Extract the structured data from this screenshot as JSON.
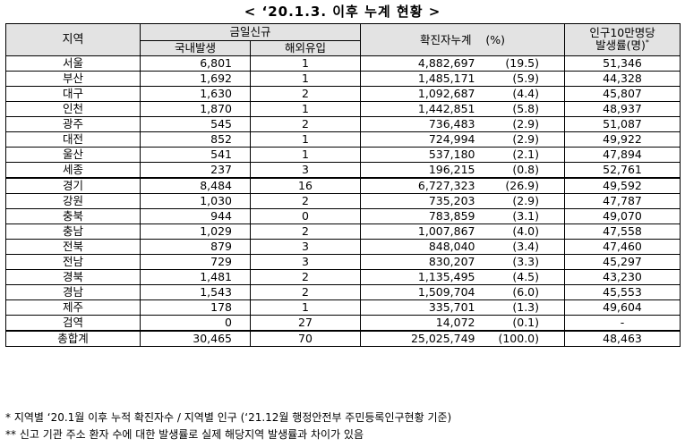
{
  "title": "< ‘20.1.3. 이후 누계 현황 >",
  "headers": {
    "region": "지역",
    "daily_new": "금일신규",
    "domestic": "국내발생",
    "overseas": "해외유입",
    "cumulative": "확진자누계",
    "percent": "(%)",
    "rate_line1": "인구10만명당",
    "rate_line2": "발생률(명)",
    "rate_marker": "*"
  },
  "rows": [
    {
      "region": "서울",
      "domestic": "6,801",
      "overseas": "1",
      "cumulative": "4,882,697",
      "pct": "(19.5)",
      "rate": "51,346"
    },
    {
      "region": "부산",
      "domestic": "1,692",
      "overseas": "1",
      "cumulative": "1,485,171",
      "pct": "(5.9)",
      "rate": "44,328"
    },
    {
      "region": "대구",
      "domestic": "1,630",
      "overseas": "2",
      "cumulative": "1,092,687",
      "pct": "(4.4)",
      "rate": "45,807"
    },
    {
      "region": "인천",
      "domestic": "1,870",
      "overseas": "1",
      "cumulative": "1,442,851",
      "pct": "(5.8)",
      "rate": "48,937"
    },
    {
      "region": "광주",
      "domestic": "545",
      "overseas": "2",
      "cumulative": "736,483",
      "pct": "(2.9)",
      "rate": "51,087"
    },
    {
      "region": "대전",
      "domestic": "852",
      "overseas": "1",
      "cumulative": "724,994",
      "pct": "(2.9)",
      "rate": "49,922"
    },
    {
      "region": "울산",
      "domestic": "541",
      "overseas": "1",
      "cumulative": "537,180",
      "pct": "(2.1)",
      "rate": "47,894"
    },
    {
      "region": "세종",
      "domestic": "237",
      "overseas": "3",
      "cumulative": "196,215",
      "pct": "(0.8)",
      "rate": "52,761"
    },
    {
      "region": "경기",
      "domestic": "8,484",
      "overseas": "16",
      "cumulative": "6,727,323",
      "pct": "(26.9)",
      "rate": "49,592"
    },
    {
      "region": "강원",
      "domestic": "1,030",
      "overseas": "2",
      "cumulative": "735,203",
      "pct": "(2.9)",
      "rate": "47,787"
    },
    {
      "region": "충북",
      "domestic": "944",
      "overseas": "0",
      "cumulative": "783,859",
      "pct": "(3.1)",
      "rate": "49,070"
    },
    {
      "region": "충남",
      "domestic": "1,029",
      "overseas": "2",
      "cumulative": "1,007,867",
      "pct": "(4.0)",
      "rate": "47,558"
    },
    {
      "region": "전북",
      "domestic": "879",
      "overseas": "3",
      "cumulative": "848,040",
      "pct": "(3.4)",
      "rate": "47,460"
    },
    {
      "region": "전남",
      "domestic": "729",
      "overseas": "3",
      "cumulative": "830,207",
      "pct": "(3.3)",
      "rate": "45,297"
    },
    {
      "region": "경북",
      "domestic": "1,481",
      "overseas": "2",
      "cumulative": "1,135,495",
      "pct": "(4.5)",
      "rate": "43,230"
    },
    {
      "region": "경남",
      "domestic": "1,543",
      "overseas": "2",
      "cumulative": "1,509,704",
      "pct": "(6.0)",
      "rate": "45,553"
    },
    {
      "region": "제주",
      "domestic": "178",
      "overseas": "1",
      "cumulative": "335,701",
      "pct": "(1.3)",
      "rate": "49,604"
    },
    {
      "region": "검역",
      "domestic": "0",
      "overseas": "27",
      "cumulative": "14,072",
      "pct": "(0.1)",
      "rate": "-"
    }
  ],
  "total": {
    "region": "총합계",
    "domestic": "30,465",
    "overseas": "70",
    "cumulative": "25,025,749",
    "pct": "(100.0)",
    "rate": "48,463"
  },
  "notes": [
    "* 지역별 ‘20.1월 이후 누적 확진자수 / 지역별 인구 (‘21.12월 행정안전부 주민등록인구현황 기준)",
    "** 신고 기관 주소 환자 수에 대한 발생률로 실제 해당지역 발생률과 차이가 있음"
  ]
}
